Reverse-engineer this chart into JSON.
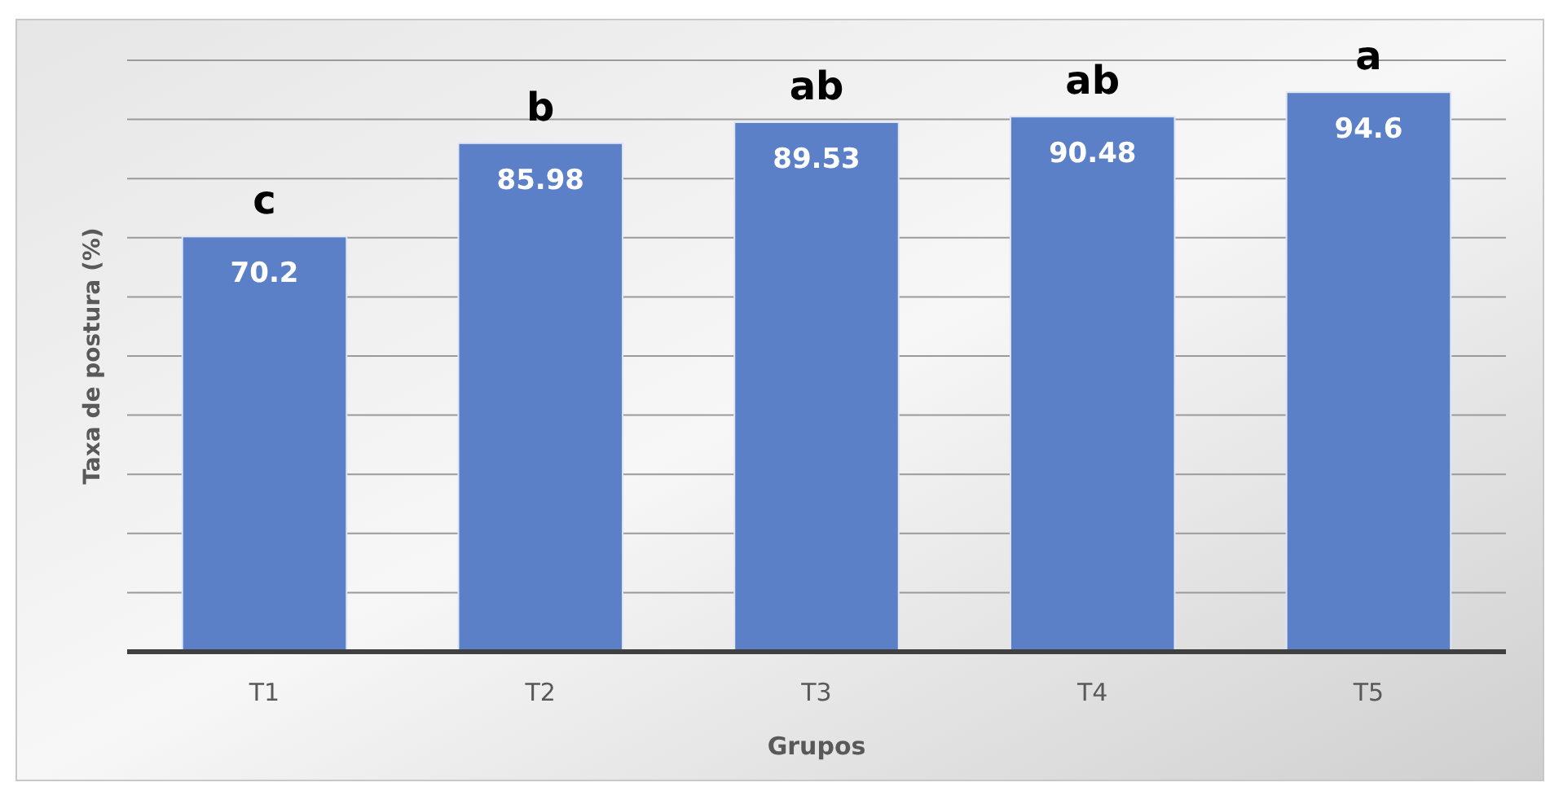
{
  "chart_data": {
    "type": "bar",
    "xlabel": "Grupos",
    "ylabel": "Taxa de postura (%)",
    "categories": [
      "T1",
      "T2",
      "T3",
      "T4",
      "T5"
    ],
    "values": [
      70.2,
      85.98,
      89.53,
      90.48,
      94.6
    ],
    "color": "#5b80c8",
    "ylim": [
      0,
      100
    ],
    "yticks": [
      {
        "value": 0,
        "label": null
      },
      {
        "value": 10,
        "label": null
      },
      {
        "value": 20,
        "label": null
      },
      {
        "value": 30,
        "label": null
      },
      {
        "value": 40,
        "label": null
      },
      {
        "value": 50,
        "label": null
      },
      {
        "value": 60,
        "label": null
      },
      {
        "value": 70,
        "label": null
      },
      {
        "value": 80,
        "label": null
      },
      {
        "value": 90,
        "label": null
      },
      {
        "value": 100,
        "label": null
      }
    ],
    "grid": "y",
    "data_labels": true,
    "annotations": [
      {
        "text": "c",
        "x": "T1",
        "y": 70.2
      },
      {
        "text": "b",
        "x": "T2",
        "y": 85.98
      },
      {
        "text": "ab",
        "x": "T3",
        "y": 89.53
      },
      {
        "text": "ab",
        "x": "T4",
        "y": 90.48
      },
      {
        "text": "a",
        "x": "T5",
        "y": 94.6
      }
    ]
  }
}
